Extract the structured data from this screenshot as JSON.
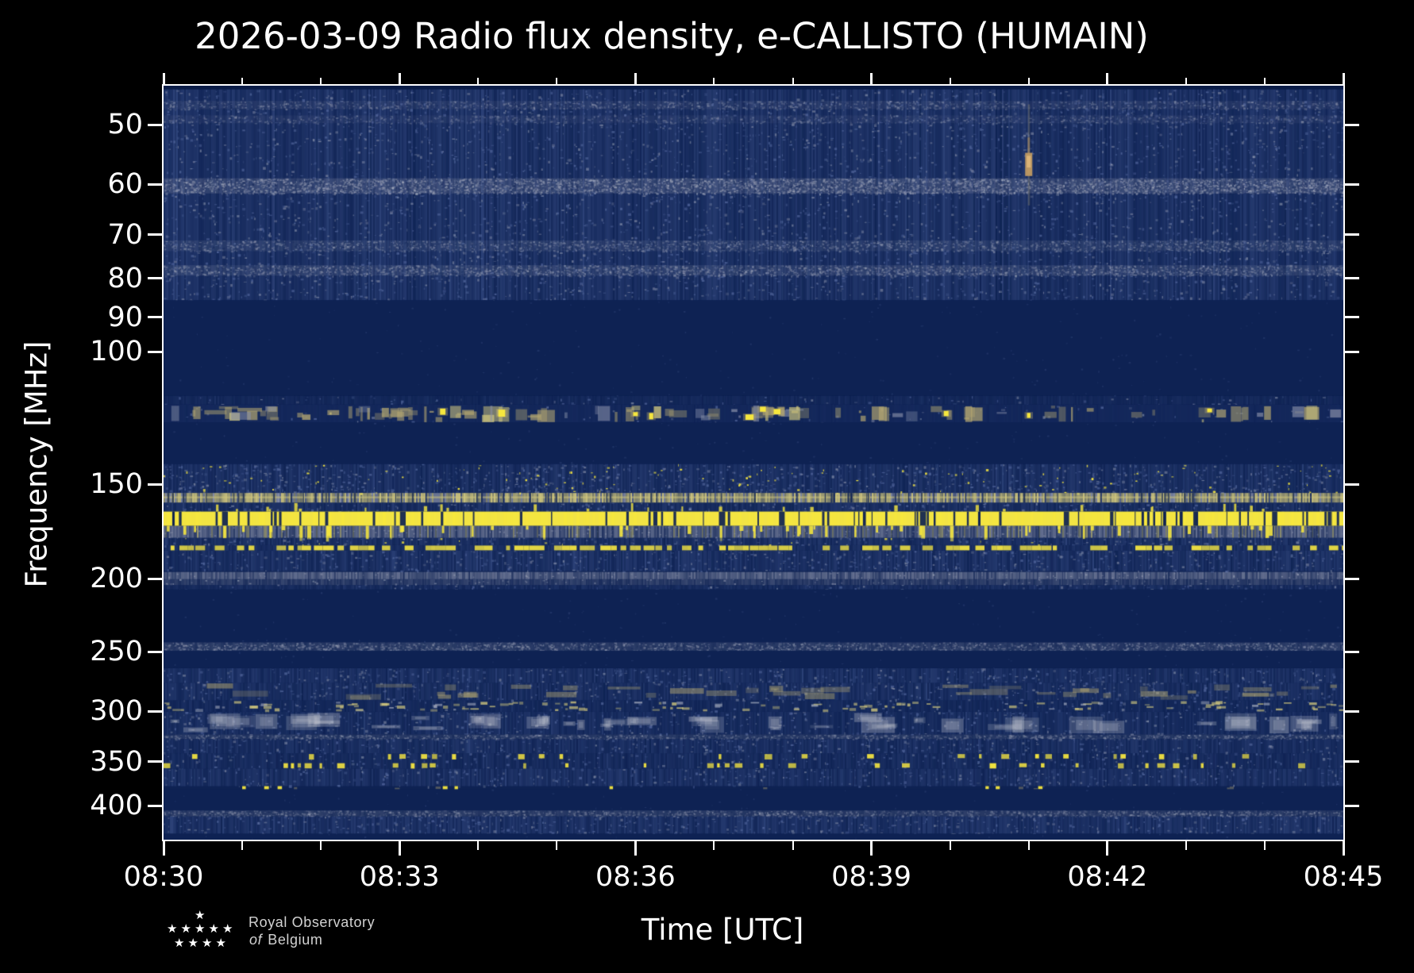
{
  "title": "2026-03-09 Radio flux density, e-CALLISTO (HUMAIN)",
  "x_axis": {
    "label": "Time [UTC]"
  },
  "y_axis": {
    "label": "Frequency [MHz]"
  },
  "logo": {
    "line1": "Royal Observatory",
    "line2_italic": "of",
    "line2": "Belgium",
    "star_rows": [
      1,
      5,
      4
    ]
  },
  "colors": {
    "background": "#000000",
    "axis": "#ffffff",
    "text": "#ffffff",
    "logo_text": "#d2d2d2",
    "deep_navy": "#0a1c47",
    "dark_navy": "#0e2253",
    "blob_base": "#122659",
    "noise_blue": "#2e4379",
    "noise_light": "#53679d",
    "steel": "#8b92aa",
    "pale_steel": "#aeb4c4",
    "tan": "#b3a671",
    "pale_yellow": "#d2c87e",
    "bright_yellow": "#f6e73e",
    "dash_yellow": "#eadc42",
    "blob_white": "#bcc0cc",
    "warm_tan": "#c09a62",
    "warm_tan_light": "#dfb77a"
  },
  "chart_data": {
    "type": "heatmap",
    "title": "2026-03-09 Radio flux density, e-CALLISTO (HUMAIN)",
    "xlabel": "Time [UTC]",
    "ylabel": "Frequency [MHz]",
    "x_start_utc": "08:30",
    "x_end_utc": "08:45",
    "duration_min": 15,
    "y_scale": "log",
    "y_range_mhz": [
      44.4,
      445
    ],
    "grid": false,
    "legend": false,
    "x_ticks": [
      {
        "minute": 0,
        "label": "08:30"
      },
      {
        "minute": 3,
        "label": "08:33"
      },
      {
        "minute": 6,
        "label": "08:36"
      },
      {
        "minute": 9,
        "label": "08:39"
      },
      {
        "minute": 12,
        "label": "08:42"
      },
      {
        "minute": 15,
        "label": "08:45"
      }
    ],
    "x_minor_tick_minutes": [
      1,
      2,
      4,
      5,
      7,
      8,
      10,
      11,
      13,
      14
    ],
    "y_ticks": [
      50,
      60,
      70,
      80,
      90,
      100,
      150,
      200,
      250,
      300,
      350,
      400
    ],
    "bands": [
      {
        "f": [
          44.4,
          44.9
        ],
        "style": "uniform",
        "color": "deep_navy"
      },
      {
        "f": [
          44.9,
          85.5
        ],
        "style": "noise",
        "wash": 0.62,
        "speckle": 0.1
      },
      {
        "f": [
          46.5,
          47.7
        ],
        "style": "speckline",
        "color": "steel",
        "wash": 0.1,
        "density": 0.3,
        "alpha": 0.45
      },
      {
        "f": [
          48.6,
          49.8
        ],
        "style": "speckline",
        "color": "steel",
        "wash": 0.08,
        "density": 0.25,
        "alpha": 0.4
      },
      {
        "f": [
          58.9,
          61.7
        ],
        "style": "speckline",
        "color": "steel",
        "wash": 0.22,
        "density": 0.55,
        "alpha": 0.7
      },
      {
        "f": [
          71.2,
          73.6
        ],
        "style": "speckline",
        "color": "steel",
        "wash": 0.12,
        "density": 0.35,
        "alpha": 0.5
      },
      {
        "f": [
          76.8,
          79.3
        ],
        "style": "speckline",
        "color": "steel",
        "wash": 0.15,
        "density": 0.45,
        "alpha": 0.55
      },
      {
        "f": [
          85.5,
          114.5
        ],
        "style": "quiet"
      },
      {
        "f": [
          114.5,
          117.6
        ],
        "style": "noise",
        "wash": 0.25,
        "speckle": 0.05
      },
      {
        "f": [
          117.6,
          124.2
        ],
        "style": "blobs",
        "bright_times": [
          3.55,
          4.3,
          6.0,
          6.2,
          7.45,
          7.62,
          7.8,
          9.95,
          11.0,
          13.3
        ]
      },
      {
        "f": [
          124.2,
          141.0
        ],
        "style": "quiet"
      },
      {
        "f": [
          141.0,
          154.0
        ],
        "style": "noise",
        "wash": 0.55,
        "speckle": 0.16,
        "yellow_dots": 0.02
      },
      {
        "f": [
          154.0,
          158.6
        ],
        "style": "paleline"
      },
      {
        "f": [
          158.6,
          163.0
        ],
        "style": "noise",
        "wash": 0.5,
        "speckle": 0.12
      },
      {
        "f": [
          170.2,
          176.6
        ],
        "style": "grayband"
      },
      {
        "f": [
          163.0,
          170.2
        ],
        "style": "yellowband"
      },
      {
        "f": [
          176.6,
          180.6
        ],
        "style": "noise",
        "wash": 0.55,
        "speckle": 0.12,
        "yellow_dots": 0.01
      },
      {
        "f": [
          180.6,
          183.7
        ],
        "style": "ydash",
        "duty": 0.68
      },
      {
        "f": [
          183.7,
          195.5
        ],
        "style": "noise",
        "wash": 0.6,
        "speckle": 0.13
      },
      {
        "f": [
          196.0,
          204.0
        ],
        "style": "grayband2"
      },
      {
        "f": [
          204.0,
          206.8
        ],
        "style": "noise",
        "wash": 0.4,
        "speckle": 0.08
      },
      {
        "f": [
          206.8,
          243.0
        ],
        "style": "quiet"
      },
      {
        "f": [
          243.0,
          249.3
        ],
        "style": "speckline",
        "color": "steel",
        "wash": 0.2,
        "density": 0.5,
        "alpha": 0.55
      },
      {
        "f": [
          249.3,
          263.0
        ],
        "style": "quiet"
      },
      {
        "f": [
          263.0,
          275.0
        ],
        "style": "noise",
        "wash": 0.55,
        "speckle": 0.12
      },
      {
        "f": [
          275.0,
          290.0
        ],
        "style": "tansmears",
        "wash": 0.5,
        "speckle": 0.1
      },
      {
        "f": [
          290.0,
          300.5
        ],
        "style": "paledash"
      },
      {
        "f": [
          300.5,
          322.0
        ],
        "style": "whiteblobs"
      },
      {
        "f": [
          322.0,
          326.5
        ],
        "style": "speckline",
        "color": "steel",
        "wash": 0.18,
        "density": 0.6,
        "alpha": 0.5
      },
      {
        "f": [
          326.5,
          341.0
        ],
        "style": "noise",
        "wash": 0.5,
        "speckle": 0.1
      },
      {
        "f": [
          341.0,
          357.5
        ],
        "style": "ydashsparse"
      },
      {
        "f": [
          357.5,
          377.0
        ],
        "style": "noise",
        "wash": 0.55,
        "speckle": 0.11
      },
      {
        "f": [
          377.0,
          380.5
        ],
        "style": "sparsedots",
        "spot_times": [
          1.02,
          1.3,
          1.47,
          3.57,
          3.72,
          5.69,
          10.47,
          10.6,
          11.14
        ]
      },
      {
        "f": [
          380.5,
          406.0
        ],
        "style": "quiet"
      },
      {
        "f": [
          406.0,
          413.5
        ],
        "style": "speckline",
        "color": "steel",
        "wash": 0.2,
        "density": 0.55,
        "alpha": 0.5
      },
      {
        "f": [
          413.5,
          436.0
        ],
        "style": "noise",
        "wash": 0.6,
        "speckle": 0.13
      },
      {
        "f": [
          436.0,
          445.0
        ],
        "style": "quiet"
      }
    ],
    "features": [
      {
        "type": "streak_blob",
        "time_min": 11.0,
        "streak_freq": [
          47,
          64
        ],
        "blob_freq": [
          54.5,
          58.5
        ]
      }
    ]
  }
}
